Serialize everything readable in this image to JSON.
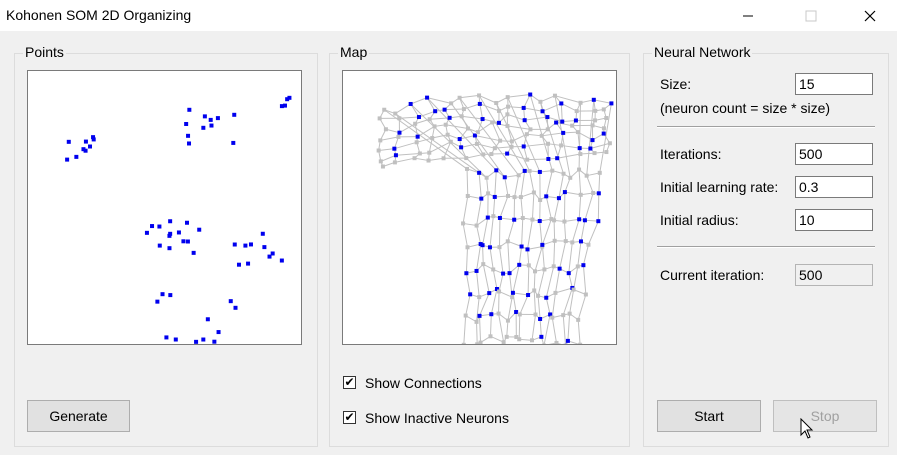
{
  "window": {
    "title": "Kohonen SOM 2D Organizing"
  },
  "points_panel": {
    "label": "Points",
    "generate_label": "Generate"
  },
  "map_panel": {
    "label": "Map",
    "show_connections_label": "Show Connections",
    "show_connections_checked": true,
    "show_inactive_label": "Show Inactive Neurons",
    "show_inactive_checked": true
  },
  "network_panel": {
    "label": "Neural Network",
    "size_label": "Size:",
    "size_value": "15",
    "size_note": "(neuron count = size * size)",
    "iterations_label": "Iterations:",
    "iterations_value": "500",
    "learning_rate_label": "Initial learning rate:",
    "learning_rate_value": "0.3",
    "radius_label": "Initial radius:",
    "radius_value": "10",
    "current_iteration_label": "Current iteration:",
    "current_iteration_value": "500",
    "start_label": "Start",
    "stop_label": "Stop"
  },
  "colors": {
    "point": "#0000ee",
    "inactive_neuron": "#c0c0c0",
    "connection": "#c0c0c0"
  }
}
